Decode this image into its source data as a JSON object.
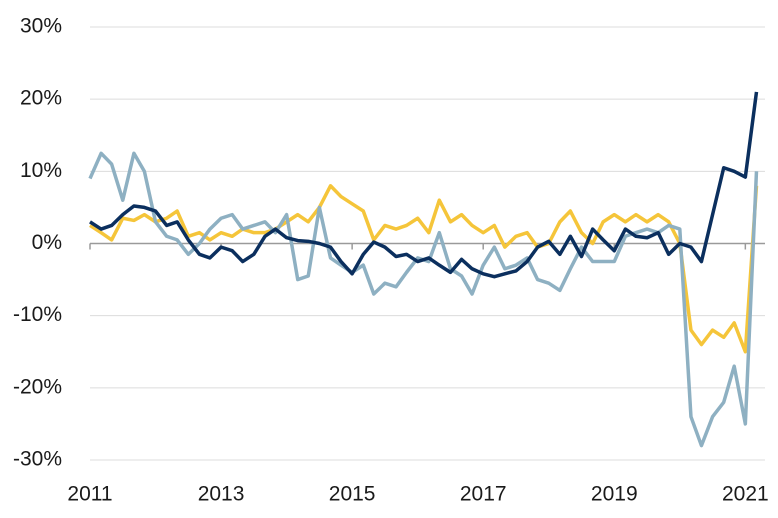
{
  "chart_data": {
    "type": "line",
    "x": [
      2011,
      2011.17,
      2011.33,
      2011.5,
      2011.67,
      2011.83,
      2012,
      2012.17,
      2012.33,
      2012.5,
      2012.67,
      2012.83,
      2013,
      2013.17,
      2013.33,
      2013.5,
      2013.67,
      2013.83,
      2014,
      2014.17,
      2014.33,
      2014.5,
      2014.67,
      2014.83,
      2015,
      2015.17,
      2015.33,
      2015.5,
      2015.67,
      2015.83,
      2016,
      2016.17,
      2016.33,
      2016.5,
      2016.67,
      2016.83,
      2017,
      2017.17,
      2017.33,
      2017.5,
      2017.67,
      2017.83,
      2018,
      2018.17,
      2018.33,
      2018.5,
      2018.67,
      2018.83,
      2019,
      2019.17,
      2019.33,
      2019.5,
      2019.67,
      2019.83,
      2020,
      2020.17,
      2020.33,
      2020.5,
      2020.67,
      2020.83,
      2021,
      2021.17
    ],
    "series": [
      {
        "color": "#f5c53a",
        "values": [
          2.5,
          1.5,
          0.5,
          3.5,
          3.2,
          4,
          3,
          3.5,
          4.5,
          1,
          1.5,
          0.5,
          1.5,
          1,
          2,
          1.5,
          1.5,
          2,
          3,
          4,
          3,
          5,
          8,
          6.5,
          5.5,
          4.5,
          0.5,
          2.5,
          2,
          2.5,
          3.5,
          1.5,
          6,
          3,
          4,
          2.5,
          1.5,
          2.5,
          -0.5,
          1,
          1.5,
          -0.5,
          0,
          3,
          4.5,
          1.5,
          0,
          3,
          4,
          3,
          4,
          3,
          4,
          3,
          0,
          -12,
          -14,
          -12,
          -13,
          -11,
          -15,
          8
        ]
      },
      {
        "color": "#8eb0c2",
        "values": [
          9,
          12.5,
          11,
          6,
          12.5,
          10,
          3,
          1,
          0.5,
          -1.5,
          0,
          2,
          3.5,
          4,
          2,
          2.5,
          3,
          1.5,
          4,
          -5,
          -4.5,
          5,
          -2,
          -3,
          -4,
          -3,
          -7,
          -5.5,
          -6,
          -4,
          -2,
          -2.5,
          1.5,
          -3.5,
          -4.5,
          -7,
          -3,
          -0.5,
          -3.5,
          -3,
          -2,
          -5,
          -5.5,
          -6.5,
          -3.5,
          -0.5,
          -2.5,
          -2.5,
          -2.5,
          1,
          1.5,
          2,
          1.5,
          2.5,
          2,
          -24,
          -28,
          -24,
          -22,
          -17,
          -25,
          10
        ]
      },
      {
        "color": "#0b2f5e",
        "values": [
          3,
          2,
          2.5,
          4,
          5.2,
          5,
          4.5,
          2.5,
          3,
          0.5,
          -1.5,
          -2,
          -0.5,
          -1,
          -2.5,
          -1.5,
          1,
          2,
          0.8,
          0.4,
          0.3,
          0,
          -0.5,
          -2.5,
          -4.2,
          -1.5,
          0.2,
          -0.5,
          -1.8,
          -1.5,
          -2.5,
          -2,
          -3,
          -4,
          -2.2,
          -3.5,
          -4.2,
          -4.6,
          -4.2,
          -3.8,
          -2.5,
          -0.5,
          0.3,
          -1.5,
          1,
          -1.8,
          2,
          0.5,
          -1,
          2,
          1,
          0.8,
          1.5,
          -1.5,
          0,
          -0.5,
          -2.5,
          4,
          10.5,
          10,
          9.2,
          21
        ]
      }
    ],
    "xlim": [
      2011,
      2021.3
    ],
    "xticks": [
      2011,
      2013,
      2015,
      2017,
      2019,
      2021
    ],
    "ylim": [
      -30,
      30
    ],
    "yticks": [
      {
        "value": -30,
        "label": "-30%"
      },
      {
        "value": -20,
        "label": "-20%"
      },
      {
        "value": -10,
        "label": "-10%"
      },
      {
        "value": 0,
        "label": "0%"
      },
      {
        "value": 10,
        "label": "10%"
      },
      {
        "value": 20,
        "label": "20%"
      },
      {
        "value": 30,
        "label": "30%"
      }
    ],
    "grid": true
  }
}
